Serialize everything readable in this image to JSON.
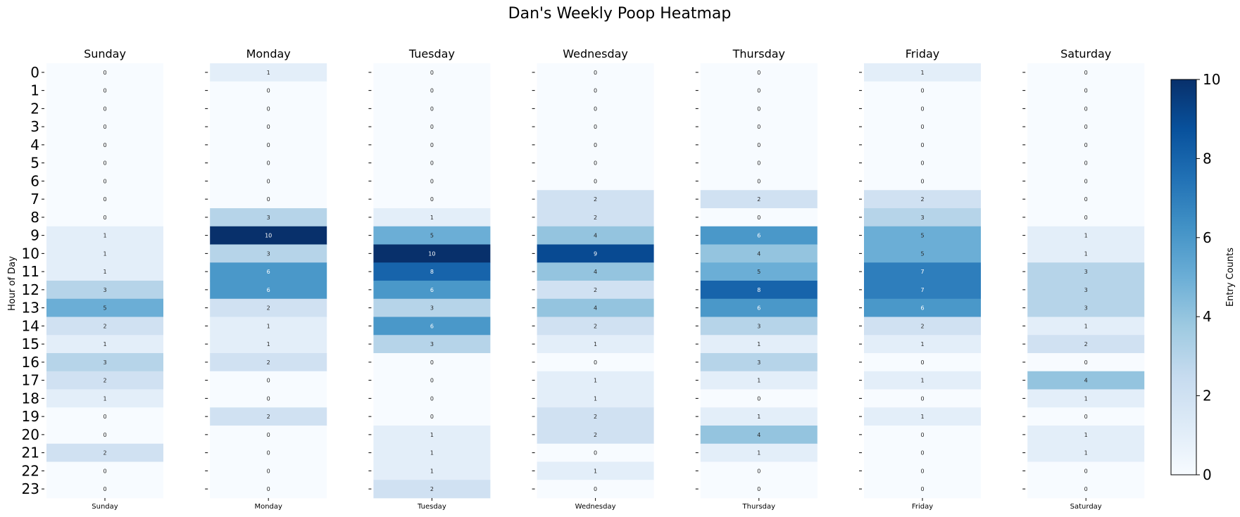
{
  "chart_data": {
    "type": "heatmap",
    "title": "Dan's Weekly Poop Heatmap",
    "ylabel": "Hour of Day",
    "colorbar": {
      "label": "Entry Counts",
      "range": [
        0,
        10
      ],
      "ticks": [
        "0",
        "2",
        "4",
        "6",
        "8",
        "10"
      ],
      "colors": [
        "#f7fbff",
        "#deebf7",
        "#c6dbef",
        "#9ecae1",
        "#6baed6",
        "#4292c6",
        "#2171b5",
        "#08519c",
        "#08306b"
      ]
    },
    "hours": [
      "0",
      "1",
      "2",
      "3",
      "4",
      "5",
      "6",
      "7",
      "8",
      "9",
      "10",
      "11",
      "12",
      "13",
      "14",
      "15",
      "16",
      "17",
      "18",
      "19",
      "20",
      "21",
      "22",
      "23"
    ],
    "days": [
      {
        "name": "Sunday",
        "values": [
          0,
          0,
          0,
          0,
          0,
          0,
          0,
          0,
          0,
          1,
          1,
          1,
          3,
          5,
          2,
          1,
          3,
          2,
          1,
          0,
          0,
          2,
          0,
          0
        ]
      },
      {
        "name": "Monday",
        "values": [
          1,
          0,
          0,
          0,
          0,
          0,
          0,
          0,
          3,
          10,
          3,
          6,
          6,
          2,
          1,
          1,
          2,
          0,
          0,
          2,
          0,
          0,
          0,
          0
        ]
      },
      {
        "name": "Tuesday",
        "values": [
          0,
          0,
          0,
          0,
          0,
          0,
          0,
          0,
          1,
          5,
          10,
          8,
          6,
          3,
          6,
          3,
          0,
          0,
          0,
          0,
          1,
          1,
          1,
          2
        ]
      },
      {
        "name": "Wednesday",
        "values": [
          0,
          0,
          0,
          0,
          0,
          0,
          0,
          2,
          2,
          4,
          9,
          4,
          2,
          4,
          2,
          1,
          0,
          1,
          1,
          2,
          2,
          0,
          1,
          0
        ]
      },
      {
        "name": "Thursday",
        "values": [
          0,
          0,
          0,
          0,
          0,
          0,
          0,
          2,
          0,
          6,
          4,
          5,
          8,
          6,
          3,
          1,
          3,
          1,
          0,
          1,
          4,
          1,
          0,
          0
        ]
      },
      {
        "name": "Friday",
        "values": [
          1,
          0,
          0,
          0,
          0,
          0,
          0,
          2,
          3,
          5,
          5,
          7,
          7,
          6,
          2,
          1,
          0,
          1,
          0,
          1,
          0,
          0,
          0,
          0
        ]
      },
      {
        "name": "Saturday",
        "values": [
          0,
          0,
          0,
          0,
          0,
          0,
          0,
          0,
          0,
          1,
          1,
          3,
          3,
          3,
          1,
          2,
          0,
          4,
          1,
          0,
          1,
          1,
          0,
          0
        ]
      }
    ]
  }
}
